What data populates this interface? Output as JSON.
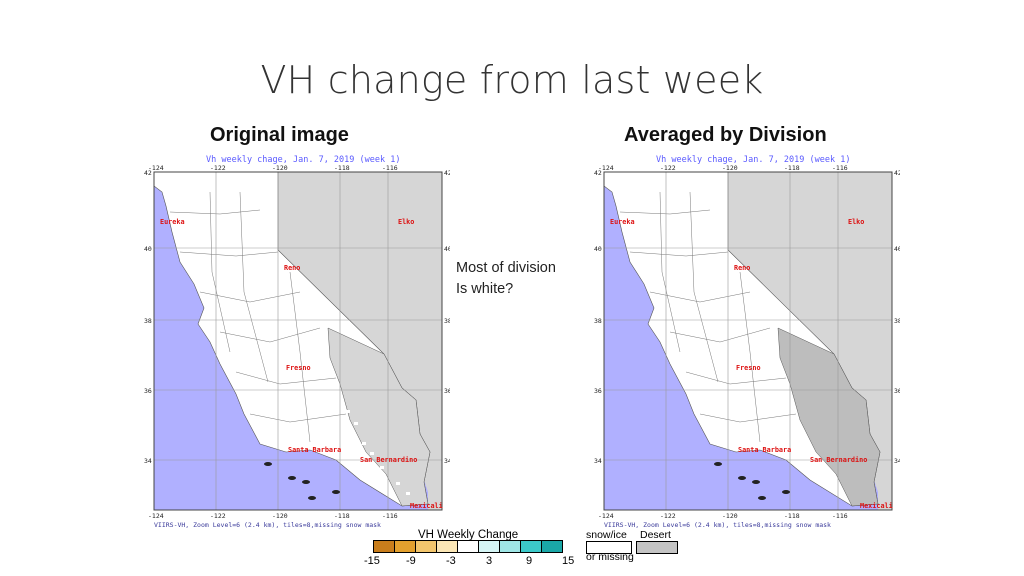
{
  "slide": {
    "title": "VH change from last week",
    "annotation_line1": "Most of division",
    "annotation_line2": "Is white?"
  },
  "panels": [
    {
      "heading": "Original image",
      "map_title": "Vh weekly chage, Jan. 7, 2019 (week 1)",
      "footer": "VIIRS-VH, Zoom Level=6 (2.4 km), tiles=8,missing snow mask"
    },
    {
      "heading": "Averaged by Division",
      "map_title": "Vh weekly chage, Jan. 7, 2019 (week 1)",
      "footer": "VIIRS-VH, Zoom Level=6 (2.4 km), tiles=8,missing snow mask"
    }
  ],
  "axes": {
    "lon_ticks": [
      "-124",
      "-122",
      "-120",
      "-118",
      "-116"
    ],
    "lat_ticks": [
      "42",
      "40",
      "38",
      "36",
      "34"
    ]
  },
  "cities": [
    "Eureka",
    "Elko",
    "Reno",
    "Fresno",
    "Santa Barbara",
    "San Bernardino",
    "Mexicali"
  ],
  "legend": {
    "title": "VH Weekly Change",
    "ticks": [
      "-15",
      "-9",
      "-3",
      "3",
      "9",
      "15"
    ],
    "colors": [
      "#c87d1c",
      "#e3a02e",
      "#f3c66d",
      "#fbe6b5",
      "#ffffff",
      "#d6f6f6",
      "#9fe6e6",
      "#3ccaca",
      "#1aa7a7"
    ],
    "snow_ice_label": "snow/ice",
    "or_missing_label": "or missing",
    "desert_label": "Desert",
    "desert_color": "#c4c4c4"
  },
  "colors": {
    "ocean": "#b0b0ff",
    "land": "#ffffff",
    "desert": "#d6d6d6",
    "desert_dark": "#bdbdbd",
    "city_label": "#dd1111",
    "map_title": "#5a5aff",
    "footer": "#3a3a9a"
  }
}
